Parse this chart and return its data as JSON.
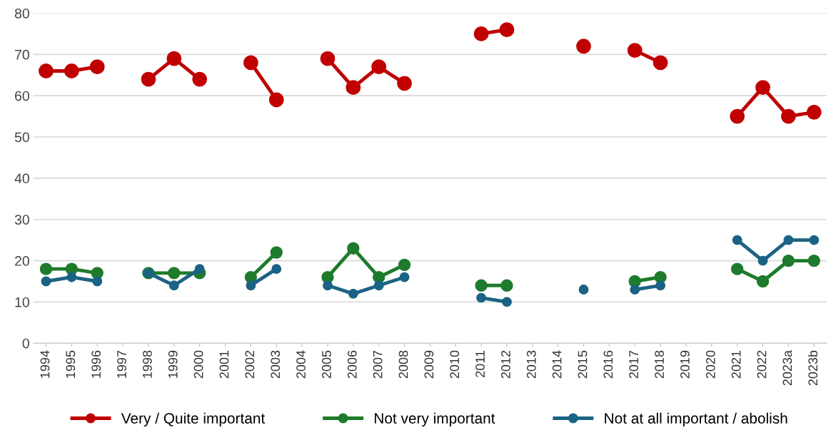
{
  "chart_data": {
    "type": "line",
    "categories": [
      "1994",
      "1995",
      "1996",
      "1997",
      "1998",
      "1999",
      "2000",
      "2001",
      "2002",
      "2003",
      "2004",
      "2005",
      "2006",
      "2007",
      "2008",
      "2009",
      "2010",
      "2011",
      "2012",
      "2013",
      "2014",
      "2015",
      "2016",
      "2017",
      "2018",
      "2019",
      "2020",
      "2021",
      "2022",
      "2023a",
      "2023b"
    ],
    "series": [
      {
        "name": "Very / Quite important",
        "color": "#c00000",
        "values": [
          66,
          66,
          67,
          null,
          64,
          69,
          64,
          null,
          68,
          59,
          null,
          69,
          62,
          67,
          63,
          null,
          null,
          75,
          76,
          null,
          null,
          72,
          null,
          71,
          68,
          null,
          null,
          55,
          62,
          55,
          56
        ]
      },
      {
        "name": "Not very important",
        "color": "#1e7b2c",
        "values": [
          18,
          18,
          17,
          null,
          17,
          17,
          17,
          null,
          16,
          22,
          null,
          16,
          23,
          16,
          19,
          null,
          null,
          14,
          14,
          null,
          null,
          null,
          null,
          15,
          16,
          null,
          null,
          18,
          15,
          20,
          20
        ]
      },
      {
        "name": "Not at all important / abolish",
        "color": "#1b6384",
        "values": [
          15,
          16,
          15,
          null,
          17,
          14,
          18,
          null,
          14,
          18,
          null,
          14,
          12,
          14,
          16,
          null,
          null,
          11,
          10,
          null,
          null,
          13,
          null,
          13,
          14,
          null,
          null,
          25,
          20,
          25,
          25
        ]
      }
    ],
    "ylim": [
      0,
      80
    ],
    "yticks": [
      0,
      10,
      20,
      30,
      40,
      50,
      60,
      70,
      80
    ],
    "grid": "y",
    "legend": "bottom",
    "marker": "circle",
    "line_style": "solid"
  }
}
